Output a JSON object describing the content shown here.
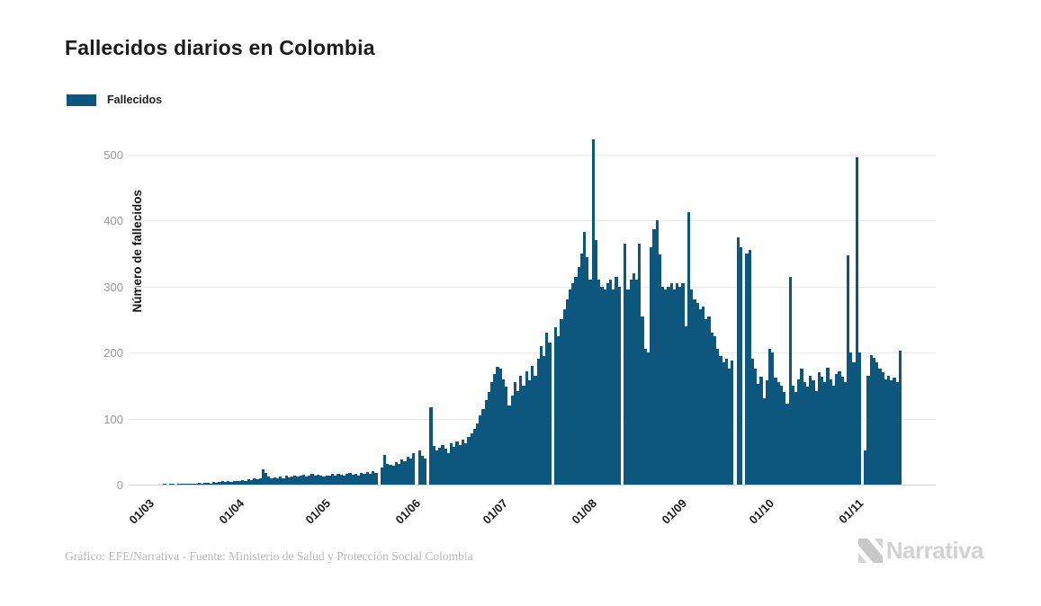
{
  "title": "Fallecidos diarios en Colombia",
  "legend": {
    "label": "Fallecidos"
  },
  "footer": {
    "credit": "Gráfico: EFE/Narrativa - Fuente: Ministerio de Salud y Protección Social Colombia"
  },
  "brand": {
    "text": "Narrativa"
  },
  "colors": {
    "bar": "#0d567e",
    "grid": "#e9e9e9",
    "axis": "#d2d2d2",
    "ytick_text": "#9b9b9b",
    "xtick_text": "#1b1b1b"
  },
  "chart_data": {
    "type": "bar",
    "title": "Fallecidos diarios en Colombia",
    "xlabel": "",
    "ylabel": "Número de fallecidos",
    "ylim": [
      0,
      534
    ],
    "y_ticks": [
      0,
      100,
      200,
      300,
      400,
      500
    ],
    "grid": "horizontal",
    "legend_position": "top-left",
    "x_unit": "día",
    "x_start_label": "01/03",
    "x_end_label": "16/11",
    "x_tick_labels": [
      "01/03",
      "01/04",
      "01/05",
      "01/06",
      "01/07",
      "01/08",
      "01/09",
      "01/10",
      "01/11"
    ],
    "x_tick_day_indices": [
      0,
      31,
      61,
      92,
      122,
      153,
      184,
      214,
      245
    ],
    "series": [
      {
        "name": "Fallecidos",
        "values": [
          0,
          0,
          0,
          0,
          0,
          0,
          1,
          0,
          1,
          1,
          0,
          1,
          1,
          1,
          2,
          1,
          2,
          2,
          3,
          2,
          3,
          3,
          2,
          4,
          3,
          4,
          5,
          4,
          5,
          4,
          5,
          5,
          6,
          7,
          6,
          8,
          7,
          9,
          8,
          10,
          23,
          18,
          12,
          10,
          11,
          9,
          12,
          10,
          13,
          11,
          12,
          14,
          12,
          13,
          15,
          12,
          14,
          16,
          13,
          15,
          14,
          12,
          14,
          13,
          16,
          14,
          17,
          15,
          13,
          16,
          18,
          15,
          17,
          14,
          18,
          16,
          19,
          17,
          20,
          18,
          0,
          26,
          45,
          32,
          30,
          28,
          34,
          31,
          38,
          35,
          42,
          40,
          48,
          0,
          52,
          44,
          40,
          0,
          117,
          58,
          52,
          56,
          60,
          54,
          48,
          62,
          57,
          65,
          60,
          68,
          63,
          72,
          78,
          85,
          92,
          105,
          115,
          128,
          140,
          155,
          168,
          178,
          175,
          160,
          148,
          120,
          135,
          155,
          142,
          165,
          150,
          172,
          158,
          180,
          165,
          190,
          210,
          195,
          230,
          215,
          0,
          238,
          225,
          250,
          265,
          280,
          295,
          305,
          315,
          330,
          350,
          382,
          345,
          310,
          523,
          370,
          310,
          300,
          295,
          305,
          310,
          295,
          315,
          300,
          0,
          365,
          295,
          310,
          320,
          310,
          365,
          255,
          205,
          200,
          360,
          387,
          400,
          348,
          300,
          295,
          300,
          305,
          295,
          305,
          300,
          305,
          240,
          412,
          295,
          280,
          275,
          265,
          270,
          250,
          255,
          230,
          225,
          205,
          195,
          185,
          190,
          175,
          188,
          0,
          375,
          360,
          0,
          350,
          356,
          190,
          176,
          152,
          163,
          131,
          158,
          205,
          200,
          162,
          155,
          150,
          140,
          122,
          315,
          150,
          140,
          160,
          175,
          155,
          148,
          165,
          158,
          142,
          170,
          163,
          155,
          177,
          160,
          150,
          168,
          172,
          163,
          155,
          347,
          200,
          185,
          495,
          200,
          0,
          52,
          165,
          196,
          192,
          185,
          176,
          170,
          160,
          165,
          158,
          162,
          155,
          203
        ]
      }
    ]
  }
}
